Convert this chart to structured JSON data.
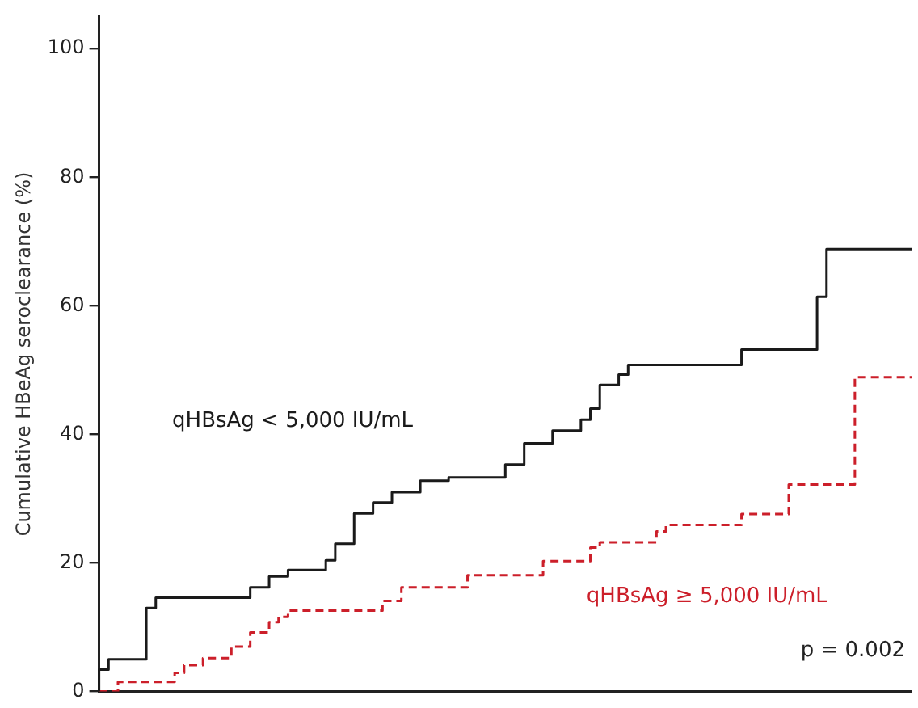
{
  "chart_data": {
    "type": "step",
    "ylabel": "Cumulative HBeAg seroclearance (%)",
    "categories": [
      null,
      null,
      null,
      null,
      null,
      null,
      null,
      null,
      null,
      null,
      null,
      null,
      null,
      null,
      null,
      null,
      null,
      null,
      null,
      null,
      null,
      null,
      null,
      null,
      null,
      null,
      null,
      null,
      null,
      null,
      null,
      null,
      null,
      null,
      null,
      null,
      null,
      null,
      null,
      null,
      null,
      null,
      null,
      null,
      null,
      null,
      null,
      null,
      null,
      null,
      null,
      null,
      null,
      null,
      null,
      null,
      null,
      null,
      null,
      null,
      null,
      null,
      null,
      null,
      null,
      null,
      null,
      null,
      null,
      null,
      null,
      null,
      null,
      null,
      null,
      null,
      null,
      null,
      null,
      null,
      null,
      null,
      null,
      null,
      null,
      null,
      null
    ],
    "series": [
      {
        "name": "qHBsAg < 5,000 IU/mL",
        "color": "#1a1a1a",
        "line_style": "solid",
        "values": [
          0,
          3.4,
          5,
          5,
          5,
          5,
          13,
          14.6,
          14.6,
          14.6,
          14.6,
          14.6,
          14.6,
          14.6,
          14.6,
          14.6,
          14.6,
          16.2,
          16.2,
          17.9,
          17.9,
          18.9,
          18.9,
          18.9,
          18.9,
          20.4,
          23,
          23,
          27.7,
          27.7,
          29.4,
          29.4,
          31,
          31,
          31,
          32.8,
          32.8,
          32.8,
          33.3,
          33.3,
          33.3,
          33.3,
          33.3,
          33.3,
          35.3,
          35.3,
          38.6,
          38.6,
          38.6,
          40.6,
          40.6,
          40.6,
          42.3,
          44,
          47.7,
          47.7,
          49.3,
          50.8,
          50.8,
          50.8,
          50.8,
          50.8,
          50.8,
          50.8,
          50.8,
          50.8,
          50.8,
          50.8,
          50.8,
          53.2,
          53.2,
          53.2,
          53.2,
          53.2,
          53.2,
          53.2,
          53.2,
          61.4,
          68.8,
          68.8,
          68.8,
          68.8,
          68.8,
          68.8,
          68.8,
          68.8,
          68.8
        ]
      },
      {
        "name": "qHBsAg ≥ 5,000 IU/mL",
        "color": "#cc1f2a",
        "line_style": "dashed",
        "values": [
          0,
          0,
          0,
          1.5,
          1.5,
          1.5,
          1.5,
          1.5,
          1.5,
          2.9,
          4.1,
          4.1,
          5.2,
          5.2,
          5.2,
          7,
          7,
          9.2,
          9.2,
          10.8,
          11.6,
          12.6,
          12.6,
          12.6,
          12.6,
          12.6,
          12.6,
          12.6,
          12.6,
          12.6,
          12.6,
          14.1,
          14.1,
          16.2,
          16.2,
          16.2,
          16.2,
          16.2,
          16.2,
          16.2,
          18.1,
          18.1,
          18.1,
          18.1,
          18.1,
          18.1,
          18.1,
          18.1,
          20.3,
          20.3,
          20.3,
          20.3,
          20.3,
          22.4,
          23.2,
          23.2,
          23.2,
          23.2,
          23.2,
          23.2,
          24.9,
          25.9,
          25.9,
          25.9,
          25.9,
          25.9,
          25.9,
          25.9,
          25.9,
          27.6,
          27.6,
          27.6,
          27.6,
          27.6,
          32.2,
          32.2,
          32.2,
          32.2,
          32.2,
          32.2,
          32.2,
          48.9,
          48.9,
          48.9,
          48.9,
          48.9,
          48.9
        ]
      }
    ],
    "annotations": [
      "p = 0.002"
    ],
    "ylim": [
      0,
      105
    ],
    "yticks": [
      0,
      20,
      40,
      60,
      80,
      100
    ],
    "tick_labels": "y",
    "grid": false,
    "legend": false,
    "marker": "none"
  }
}
